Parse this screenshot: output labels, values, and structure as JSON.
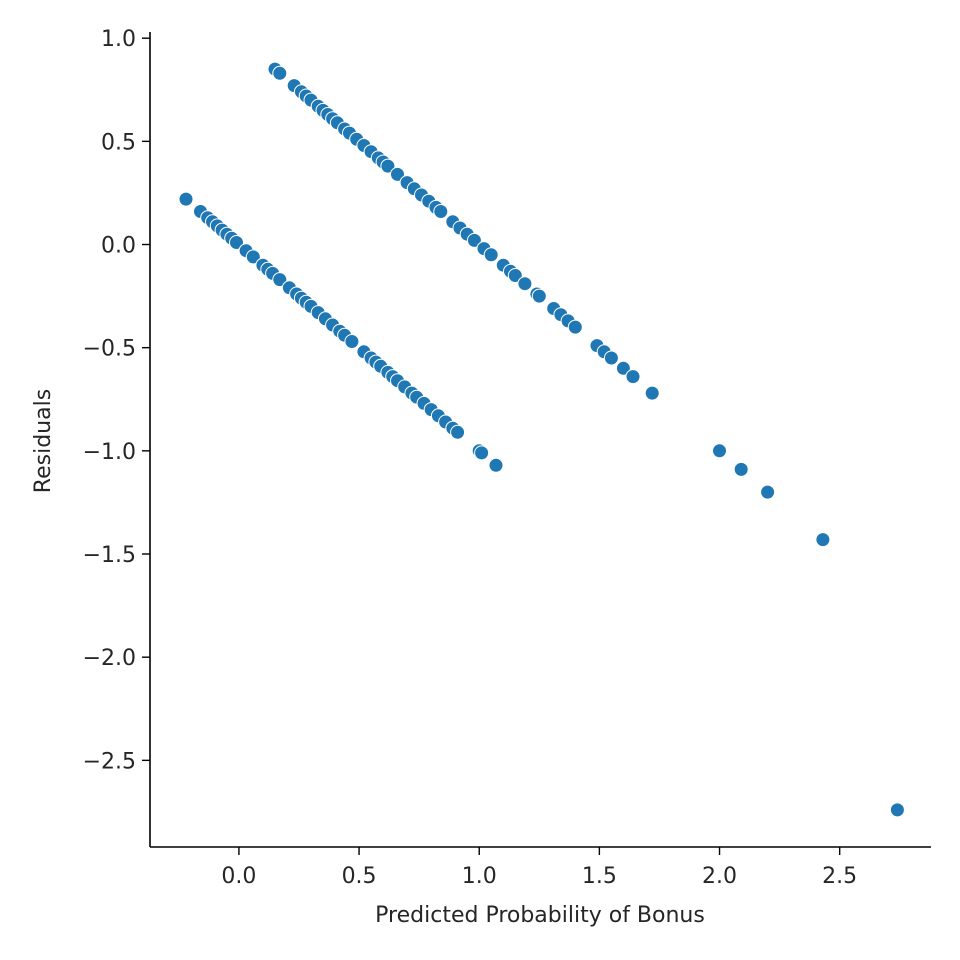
{
  "chart_data": {
    "type": "scatter",
    "title": "",
    "xlabel": "Predicted Probability of Bonus",
    "ylabel": "Residuals",
    "xlim": [
      -0.37,
      2.88
    ],
    "ylim": [
      -2.92,
      1.03
    ],
    "xticks": [
      0.0,
      0.5,
      1.0,
      1.5,
      2.0,
      2.5
    ],
    "xtick_labels": [
      "0.0",
      "0.5",
      "1.0",
      "1.5",
      "2.0",
      "2.5"
    ],
    "yticks": [
      1.0,
      0.5,
      0.0,
      -0.5,
      -1.0,
      -1.5,
      -2.0,
      -2.5
    ],
    "ytick_labels": [
      "1.0",
      "0.5",
      "0.0",
      "−0.5",
      "−1.0",
      "−1.5",
      "−2.0",
      "−2.5"
    ],
    "grid": false,
    "color": "#1f77b4",
    "series": [
      {
        "points": [
          [
            -0.22,
            0.22
          ],
          [
            -0.16,
            0.16
          ],
          [
            -0.13,
            0.13
          ],
          [
            -0.11,
            0.11
          ],
          [
            -0.09,
            0.09
          ],
          [
            -0.07,
            0.07
          ],
          [
            -0.05,
            0.05
          ],
          [
            -0.03,
            0.03
          ],
          [
            -0.01,
            0.01
          ],
          [
            0.03,
            -0.03
          ],
          [
            0.06,
            -0.06
          ],
          [
            0.1,
            -0.1
          ],
          [
            0.12,
            -0.12
          ],
          [
            0.14,
            -0.14
          ],
          [
            0.17,
            -0.17
          ],
          [
            0.21,
            -0.21
          ],
          [
            0.24,
            -0.24
          ],
          [
            0.26,
            -0.26
          ],
          [
            0.28,
            -0.28
          ],
          [
            0.3,
            -0.3
          ],
          [
            0.33,
            -0.33
          ],
          [
            0.36,
            -0.36
          ],
          [
            0.39,
            -0.39
          ],
          [
            0.42,
            -0.42
          ],
          [
            0.44,
            -0.44
          ],
          [
            0.47,
            -0.47
          ],
          [
            0.52,
            -0.52
          ],
          [
            0.55,
            -0.55
          ],
          [
            0.57,
            -0.57
          ],
          [
            0.59,
            -0.59
          ],
          [
            0.62,
            -0.62
          ],
          [
            0.64,
            -0.64
          ],
          [
            0.66,
            -0.66
          ],
          [
            0.69,
            -0.69
          ],
          [
            0.72,
            -0.72
          ],
          [
            0.74,
            -0.74
          ],
          [
            0.77,
            -0.77
          ],
          [
            0.8,
            -0.8
          ],
          [
            0.83,
            -0.83
          ],
          [
            0.86,
            -0.86
          ],
          [
            0.89,
            -0.89
          ],
          [
            0.91,
            -0.91
          ],
          [
            1.0,
            -1.0
          ],
          [
            1.01,
            -1.01
          ],
          [
            1.07,
            -1.07
          ],
          [
            0.15,
            0.85
          ],
          [
            0.17,
            0.83
          ],
          [
            0.23,
            0.77
          ],
          [
            0.26,
            0.74
          ],
          [
            0.28,
            0.72
          ],
          [
            0.3,
            0.7
          ],
          [
            0.33,
            0.67
          ],
          [
            0.35,
            0.65
          ],
          [
            0.37,
            0.63
          ],
          [
            0.39,
            0.61
          ],
          [
            0.41,
            0.59
          ],
          [
            0.44,
            0.56
          ],
          [
            0.46,
            0.54
          ],
          [
            0.49,
            0.51
          ],
          [
            0.52,
            0.48
          ],
          [
            0.55,
            0.45
          ],
          [
            0.58,
            0.42
          ],
          [
            0.6,
            0.4
          ],
          [
            0.62,
            0.38
          ],
          [
            0.66,
            0.34
          ],
          [
            0.7,
            0.3
          ],
          [
            0.73,
            0.27
          ],
          [
            0.76,
            0.24
          ],
          [
            0.79,
            0.21
          ],
          [
            0.82,
            0.18
          ],
          [
            0.84,
            0.16
          ],
          [
            0.89,
            0.11
          ],
          [
            0.92,
            0.08
          ],
          [
            0.95,
            0.05
          ],
          [
            0.98,
            0.02
          ],
          [
            1.02,
            -0.02
          ],
          [
            1.05,
            -0.05
          ],
          [
            1.1,
            -0.1
          ],
          [
            1.13,
            -0.13
          ],
          [
            1.15,
            -0.15
          ],
          [
            1.19,
            -0.19
          ],
          [
            1.24,
            -0.24
          ],
          [
            1.25,
            -0.25
          ],
          [
            1.31,
            -0.31
          ],
          [
            1.34,
            -0.34
          ],
          [
            1.37,
            -0.37
          ],
          [
            1.4,
            -0.4
          ],
          [
            1.49,
            -0.49
          ],
          [
            1.52,
            -0.52
          ],
          [
            1.55,
            -0.55
          ],
          [
            1.6,
            -0.6
          ],
          [
            1.64,
            -0.64
          ],
          [
            1.72,
            -0.72
          ],
          [
            2.0,
            -1.0
          ],
          [
            2.09,
            -1.09
          ],
          [
            2.2,
            -1.2
          ],
          [
            2.43,
            -1.43
          ],
          [
            2.74,
            -2.74
          ]
        ]
      }
    ]
  }
}
